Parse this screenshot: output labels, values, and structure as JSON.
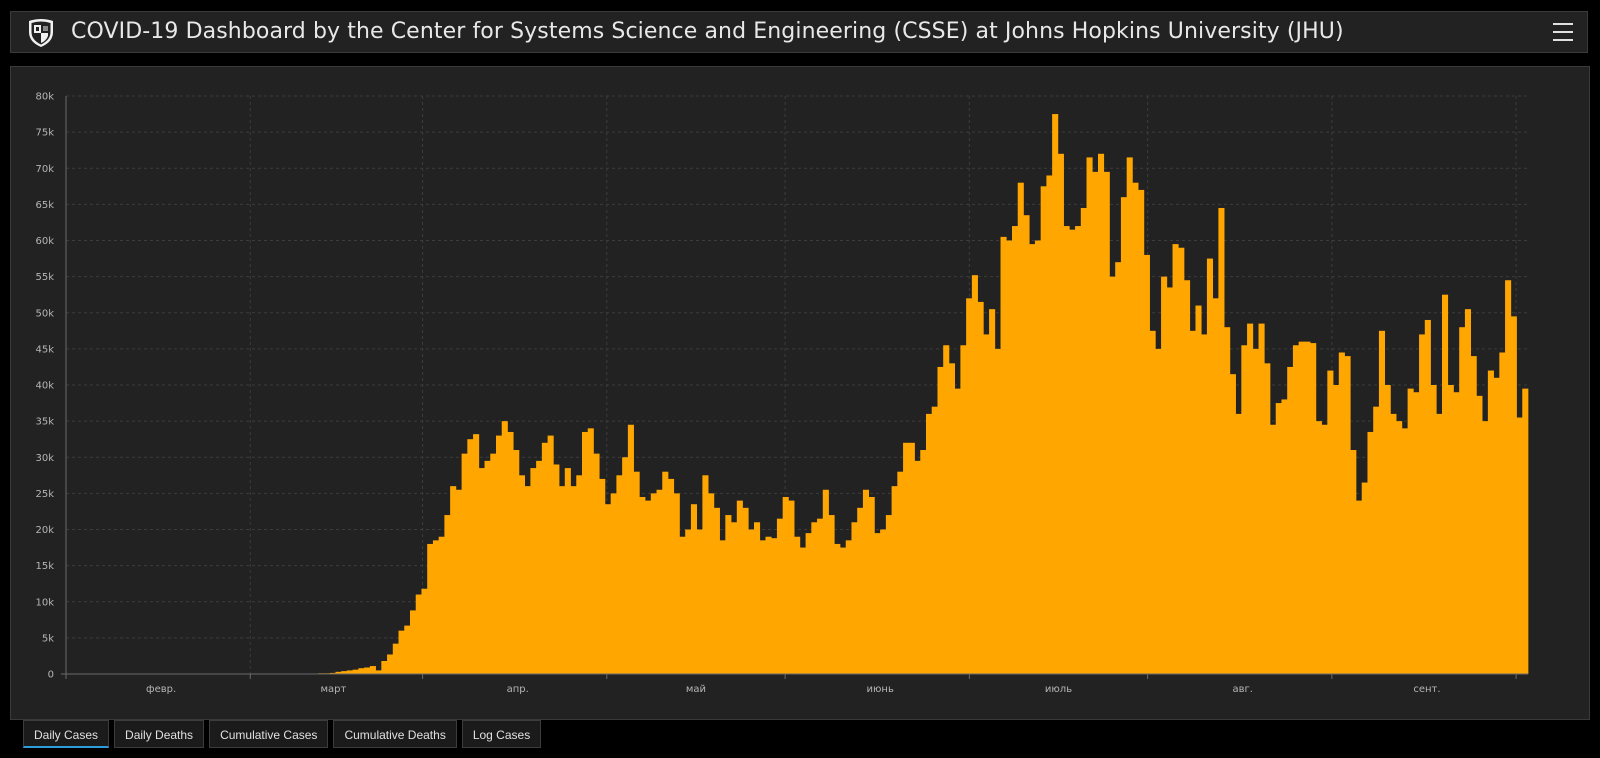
{
  "header": {
    "title": "COVID-19 Dashboard by the Center for Systems Science and Engineering (CSSE) at Johns Hopkins University (JHU)",
    "logo_icon": "jhu-shield-icon",
    "menu_icon": "hamburger-menu-icon"
  },
  "colors": {
    "bar": "#ffa700",
    "grid": "#3c3c3c",
    "panel": "#222222",
    "active_tab_underline": "#2e9bdb"
  },
  "chart_data": {
    "type": "bar",
    "title": "",
    "xlabel": "",
    "ylabel": "",
    "ylim": [
      0,
      80000
    ],
    "grid": true,
    "yticks": [
      {
        "value": 0,
        "label": "0"
      },
      {
        "value": 5000,
        "label": "5k"
      },
      {
        "value": 10000,
        "label": "10k"
      },
      {
        "value": 15000,
        "label": "15k"
      },
      {
        "value": 20000,
        "label": "20k"
      },
      {
        "value": 25000,
        "label": "25k"
      },
      {
        "value": 30000,
        "label": "30k"
      },
      {
        "value": 35000,
        "label": "35k"
      },
      {
        "value": 40000,
        "label": "40k"
      },
      {
        "value": 45000,
        "label": "45k"
      },
      {
        "value": 50000,
        "label": "50k"
      },
      {
        "value": 55000,
        "label": "55k"
      },
      {
        "value": 60000,
        "label": "60k"
      },
      {
        "value": 65000,
        "label": "65k"
      },
      {
        "value": 70000,
        "label": "70k"
      },
      {
        "value": 75000,
        "label": "75k"
      },
      {
        "value": 80000,
        "label": "80k"
      }
    ],
    "x_range": [
      "2020-01-22",
      "2020-09-24"
    ],
    "month_gridlines": [
      "2020-01-22",
      "2020-02-22",
      "2020-03-22",
      "2020-04-22",
      "2020-05-22",
      "2020-06-22",
      "2020-07-22",
      "2020-08-22",
      "2020-09-22"
    ],
    "month_labels": [
      {
        "date": "2020-02-07",
        "label": "февр."
      },
      {
        "date": "2020-03-07",
        "label": "март"
      },
      {
        "date": "2020-04-07",
        "label": "апр."
      },
      {
        "date": "2020-05-07",
        "label": "май"
      },
      {
        "date": "2020-06-07",
        "label": "июнь"
      },
      {
        "date": "2020-07-07",
        "label": "июль"
      },
      {
        "date": "2020-08-07",
        "label": "авг."
      },
      {
        "date": "2020-09-07",
        "label": "сент."
      }
    ],
    "series": [
      {
        "values": [
          50,
          50,
          50,
          50,
          50,
          50,
          50,
          50,
          50,
          50,
          50,
          50,
          50,
          50,
          50,
          50,
          50,
          50,
          50,
          50,
          50,
          50,
          50,
          50,
          50,
          50,
          50,
          50,
          50,
          50,
          50,
          50,
          50,
          50,
          50,
          50,
          50,
          50,
          50,
          50,
          50,
          50,
          50,
          50,
          100,
          100,
          150,
          300,
          400,
          500,
          600,
          800,
          900,
          1100,
          500,
          1800,
          2700,
          4200,
          6000,
          6700,
          8800,
          11000,
          11800,
          18000,
          18500,
          19000,
          22000,
          26000,
          25500,
          30500,
          32500,
          33200,
          28500,
          29500,
          30500,
          33000,
          35000,
          33500,
          31000,
          27500,
          26000,
          28500,
          29500,
          32000,
          33000,
          29000,
          26000,
          28500,
          26000,
          27500,
          33500,
          34000,
          30500,
          27000,
          23500,
          25000,
          27500,
          30000,
          34500,
          28000,
          24500,
          24000,
          25000,
          25500,
          28000,
          27000,
          25000,
          19000,
          20000,
          23500,
          20000,
          27500,
          25000,
          23000,
          18500,
          22000,
          21000,
          24000,
          23000,
          20000,
          21000,
          18500,
          19000,
          18800,
          21500,
          24500,
          24000,
          19000,
          17500,
          19500,
          21000,
          21500,
          25500,
          22000,
          18000,
          17500,
          18500,
          21000,
          23000,
          25500,
          24500,
          19500,
          20000,
          22000,
          26000,
          28000,
          32000,
          32000,
          29500,
          31000,
          36000,
          37000,
          42500,
          45500,
          43000,
          39500,
          45500,
          52000,
          55200,
          51500,
          47000,
          50500,
          45000,
          60500,
          60000,
          62000,
          68000,
          63500,
          59500,
          60000,
          67500,
          69000,
          77500,
          72000,
          62000,
          61500,
          62000,
          64500,
          71500,
          69500,
          72000,
          69500,
          55000,
          57000,
          66000,
          71500,
          68000,
          67000,
          58000,
          47500,
          45000,
          55000,
          53500,
          59500,
          59000,
          54500,
          47500,
          51000,
          47000,
          57500,
          52000,
          64500,
          48000,
          41500,
          36000,
          45500,
          48500,
          45000,
          48500,
          43000,
          34500,
          37500,
          38000,
          42500,
          45500,
          46000,
          46000,
          45800,
          35000,
          34500,
          42000,
          40000,
          44500,
          44000,
          31000,
          24000,
          26500,
          33500,
          37000,
          47500,
          40000,
          36000,
          35000,
          34000,
          39500,
          39000,
          47000,
          49000,
          40000,
          36000,
          52500,
          40000,
          39000,
          48000,
          50500,
          44000,
          38500,
          35000,
          42000,
          41000,
          44500,
          54500,
          49500,
          35500,
          39500
        ]
      }
    ]
  },
  "tabs": [
    {
      "label": "Daily Cases",
      "active": true
    },
    {
      "label": "Daily Deaths",
      "active": false
    },
    {
      "label": "Cumulative Cases",
      "active": false
    },
    {
      "label": "Cumulative Deaths",
      "active": false
    },
    {
      "label": "Log Cases",
      "active": false
    }
  ]
}
